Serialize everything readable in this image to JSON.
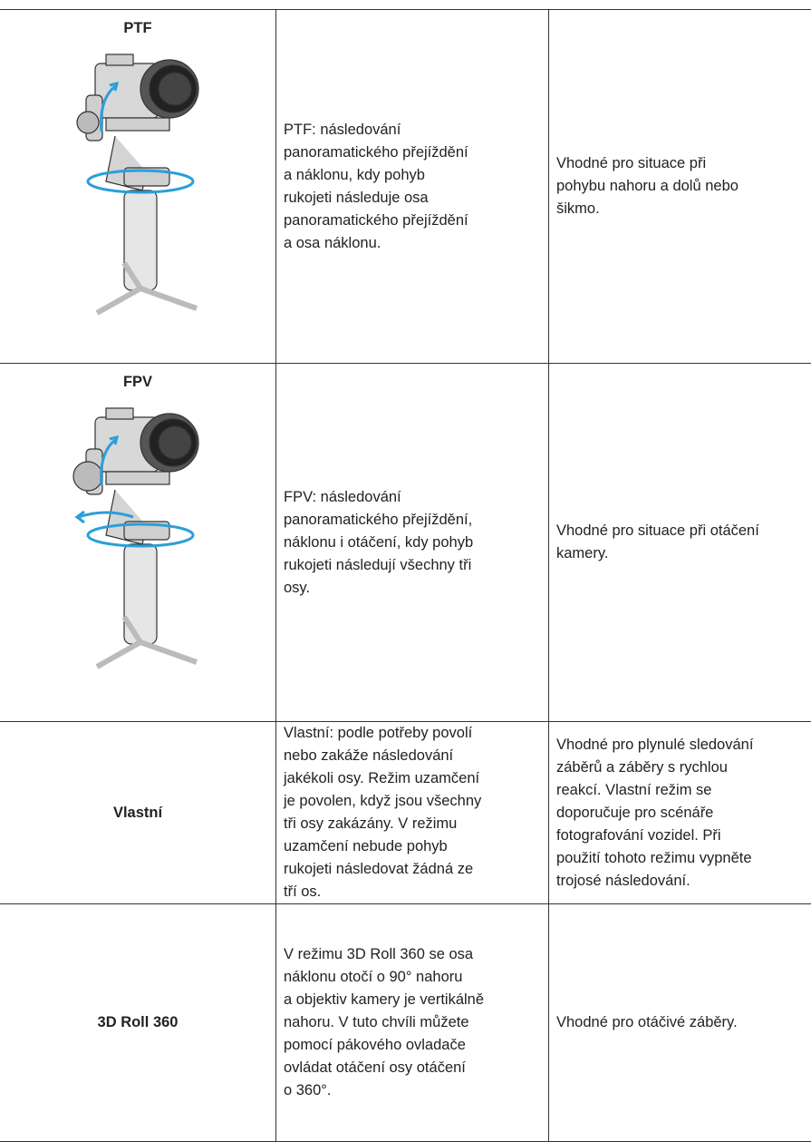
{
  "table": {
    "rows": [
      {
        "mode": "PTF",
        "description": [
          "PTF: následování",
          "panoramatického přejíždění",
          "a náklonu, kdy pohyb",
          "rukojeti následuje osa",
          "panoramatického přejíždění",
          "a osa náklonu."
        ],
        "usage": [
          "Vhodné pro situace při",
          "pohybu nahoru a dolů nebo",
          "šikmo."
        ]
      },
      {
        "mode": "FPV",
        "description": [
          "FPV: následování",
          "panoramatického přejíždění,",
          "náklonu i otáčení, kdy pohyb",
          "rukojeti následují všechny tři",
          "osy."
        ],
        "usage": [
          "Vhodné pro situace při otáčení",
          "kamery."
        ]
      },
      {
        "mode": "Vlastní",
        "description": [
          "Vlastní: podle potřeby povolí",
          "nebo zakáže následování",
          "jakékoli osy. Režim uzamčení",
          "je povolen, když jsou všechny",
          "tři osy zakázány. V režimu",
          "uzamčení nebude pohyb",
          "rukojeti následovat žádná ze",
          "tří os."
        ],
        "usage": [
          "Vhodné pro plynulé sledování",
          "záběrů a záběry s rychlou",
          "reakcí. Vlastní režim se",
          "doporučuje pro scénáře",
          "fotografování vozidel. Při",
          "použití tohoto režimu vypněte",
          "trojosé následování."
        ]
      },
      {
        "mode": "3D Roll 360",
        "description": [
          "V režimu 3D Roll 360 se osa",
          "náklonu otočí o 90° nahoru",
          "a objektiv kamery je vertikálně",
          "nahoru. V tuto chvíli můžete",
          "pomocí pákového ovladače",
          "ovládat otáčení osy otáčení",
          "o 360°."
        ],
        "usage": [
          "Vhodné pro otáčivé záběry."
        ]
      }
    ]
  }
}
